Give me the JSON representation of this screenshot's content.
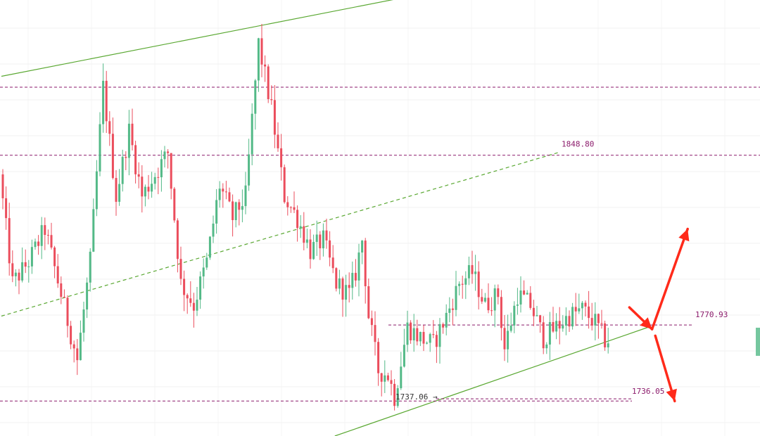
{
  "chart_data": {
    "type": "candlestick",
    "price_range": [
      1720,
      1920
    ],
    "candle_count": 200,
    "segments": [
      [
        0,
        1840
      ],
      [
        4,
        1790
      ],
      [
        9,
        1800
      ],
      [
        14,
        1815
      ],
      [
        19,
        1785
      ],
      [
        24,
        1755
      ],
      [
        28,
        1800
      ],
      [
        32,
        1880
      ],
      [
        36,
        1830
      ],
      [
        40,
        1860
      ],
      [
        44,
        1830
      ],
      [
        48,
        1840
      ],
      [
        52,
        1850
      ],
      [
        56,
        1790
      ],
      [
        60,
        1780
      ],
      [
        64,
        1800
      ],
      [
        68,
        1835
      ],
      [
        72,
        1820
      ],
      [
        76,
        1830
      ],
      [
        80,
        1900
      ],
      [
        84,
        1870
      ],
      [
        88,
        1830
      ],
      [
        92,
        1820
      ],
      [
        96,
        1805
      ],
      [
        100,
        1810
      ],
      [
        104,
        1790
      ],
      [
        108,
        1785
      ],
      [
        110,
        1795
      ],
      [
        112,
        1810
      ],
      [
        114,
        1775
      ],
      [
        117,
        1750
      ],
      [
        120,
        1748
      ],
      [
        122,
        1738
      ],
      [
        126,
        1770
      ],
      [
        130,
        1765
      ],
      [
        134,
        1762
      ],
      [
        138,
        1775
      ],
      [
        142,
        1790
      ],
      [
        146,
        1795
      ],
      [
        150,
        1780
      ],
      [
        154,
        1785
      ],
      [
        156,
        1760
      ],
      [
        160,
        1785
      ],
      [
        164,
        1780
      ],
      [
        168,
        1765
      ],
      [
        172,
        1770
      ],
      [
        176,
        1775
      ],
      [
        180,
        1778
      ],
      [
        184,
        1772
      ],
      [
        187,
        1764
      ]
    ],
    "colors": {
      "up": "#53b987",
      "down": "#eb4d5c"
    },
    "levels": [
      {
        "value": 1848.8,
        "label": "1848.80",
        "color": "#8b1a6b"
      },
      {
        "value": 1770.93,
        "label": "1770.93",
        "color": "#8b1a6b"
      },
      {
        "value": 1736.05,
        "label": "1736.05",
        "color": "#8b1a6b"
      },
      {
        "value": 1880.0,
        "label": "",
        "color": "#8b1a6b"
      }
    ],
    "low_marker": {
      "value": 1737.06,
      "label": "1737.06"
    },
    "trendlines": [
      {
        "name": "upper-channel",
        "from": [
          0,
          1885
        ],
        "to": [
          172,
          1935
        ],
        "color": "#5aa832",
        "style": "solid"
      },
      {
        "name": "mid-channel",
        "from": [
          0,
          1775
        ],
        "to": [
          172,
          1850
        ],
        "color": "#5aa832",
        "style": "dashed"
      },
      {
        "name": "lower-channel",
        "from": [
          103,
          1720
        ],
        "to": [
          200,
          1770
        ],
        "color": "#5aa832",
        "style": "solid"
      }
    ],
    "arrows": [
      {
        "name": "drop-arrow",
        "from": [
          194,
          1779
        ],
        "to": [
          201,
          1769
        ],
        "color": "#ff2a1a"
      },
      {
        "name": "bounce-up-arrow",
        "from": [
          201,
          1769
        ],
        "to": [
          212,
          1815
        ],
        "color": "#ff2a1a"
      },
      {
        "name": "breakdown-arrow",
        "from": [
          202,
          1766
        ],
        "to": [
          208,
          1736
        ],
        "color": "#ff2a1a"
      }
    ],
    "grid": true,
    "legend": "none"
  }
}
